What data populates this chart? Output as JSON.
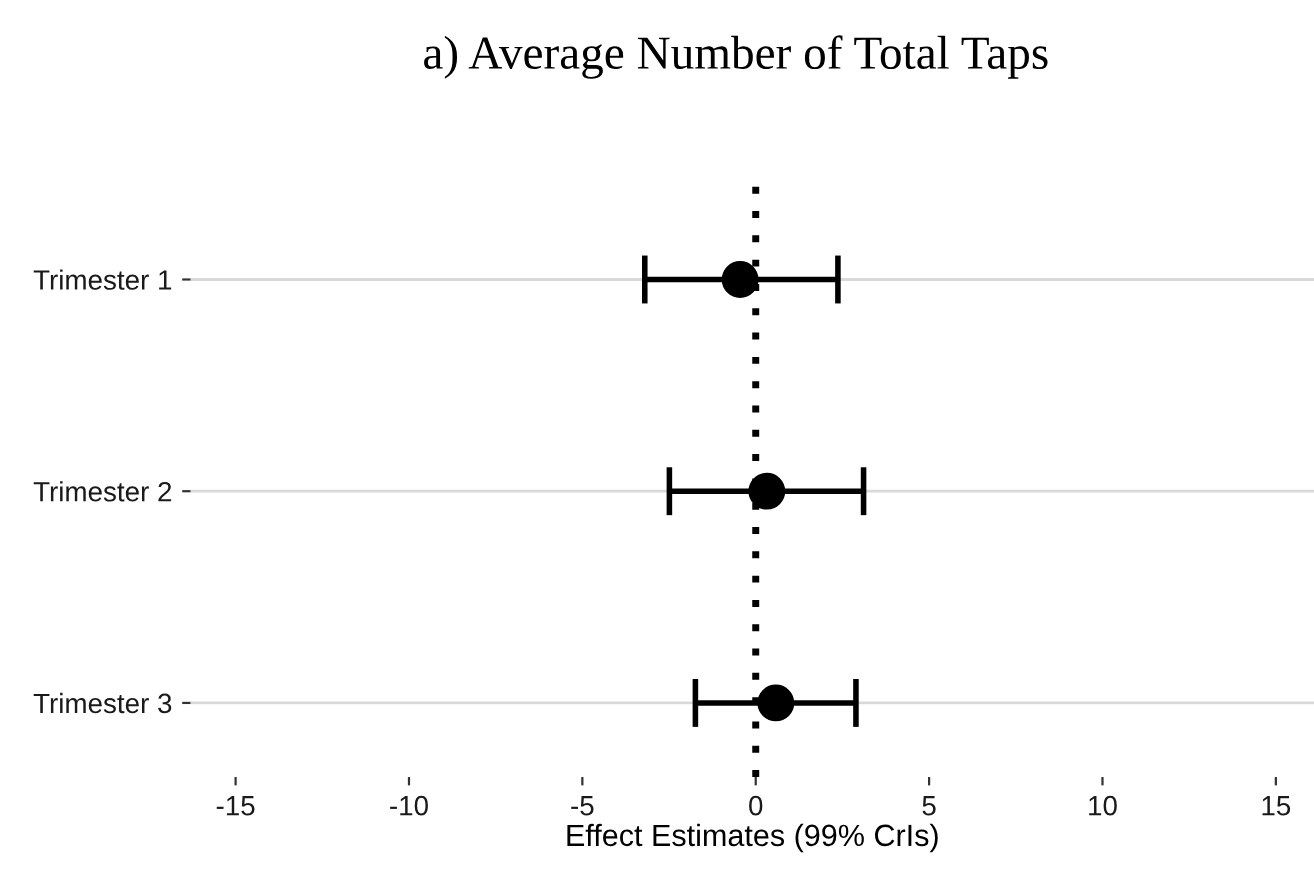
{
  "chart_data": {
    "type": "scatter",
    "orientation": "horizontal",
    "title": "a) Average Number of Total Taps",
    "xlabel": "Effect Estimates (99% CrIs)",
    "categories": [
      "Trimester 1",
      "Trimester 2",
      "Trimester 3"
    ],
    "values": [
      -0.45,
      0.32,
      0.58
    ],
    "errors": [
      [
        -3.2,
        2.37
      ],
      [
        -2.49,
        3.11
      ],
      [
        -1.74,
        2.89
      ]
    ],
    "color": "#000000",
    "marker": "circle",
    "xlim": [
      -16.3,
      16.1
    ],
    "xticks": [
      -15,
      -10,
      -5,
      0,
      5,
      10,
      15
    ],
    "ref_lines": [
      {
        "axis": "x",
        "value": 0,
        "line_style": "dotted",
        "color": "#000000"
      }
    ],
    "grid": "y",
    "legend": false
  }
}
